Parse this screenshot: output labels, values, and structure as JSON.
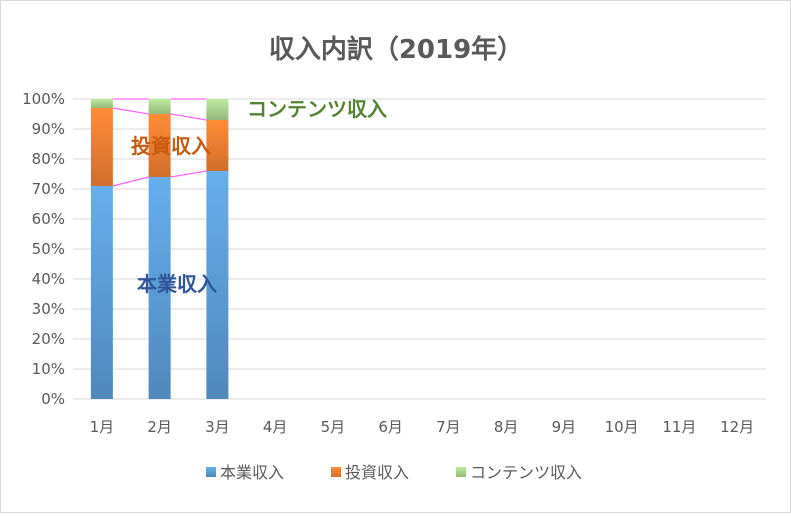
{
  "chart_data": {
    "type": "bar",
    "stacked": "percent",
    "title": "収入内訳（2019年）",
    "categories": [
      "1月",
      "2月",
      "3月",
      "4月",
      "5月",
      "6月",
      "7月",
      "8月",
      "9月",
      "10月",
      "11月",
      "12月"
    ],
    "series": [
      {
        "name": "本業収入",
        "values": [
          71,
          74,
          76,
          null,
          null,
          null,
          null,
          null,
          null,
          null,
          null,
          null
        ],
        "color": "#5b9bd5"
      },
      {
        "name": "投資収入",
        "values": [
          26,
          21,
          17,
          null,
          null,
          null,
          null,
          null,
          null,
          null,
          null,
          null
        ],
        "color": "#ed7d31"
      },
      {
        "name": "コンテンツ収入",
        "values": [
          3,
          5,
          7,
          null,
          null,
          null,
          null,
          null,
          null,
          null,
          null,
          null
        ],
        "color": "#a9d18e"
      }
    ],
    "yticks": [
      "0%",
      "10%",
      "20%",
      "30%",
      "40%",
      "50%",
      "60%",
      "70%",
      "80%",
      "90%",
      "100%"
    ],
    "ylim": [
      0,
      100
    ],
    "grid": true,
    "series_lines": true,
    "legend_position": "bottom",
    "annotations": [
      {
        "text": "コンテンツ収入",
        "color": "#548235"
      },
      {
        "text": "投資収入",
        "color": "#c55a11"
      },
      {
        "text": "本業収入",
        "color": "#2f5597"
      }
    ]
  }
}
